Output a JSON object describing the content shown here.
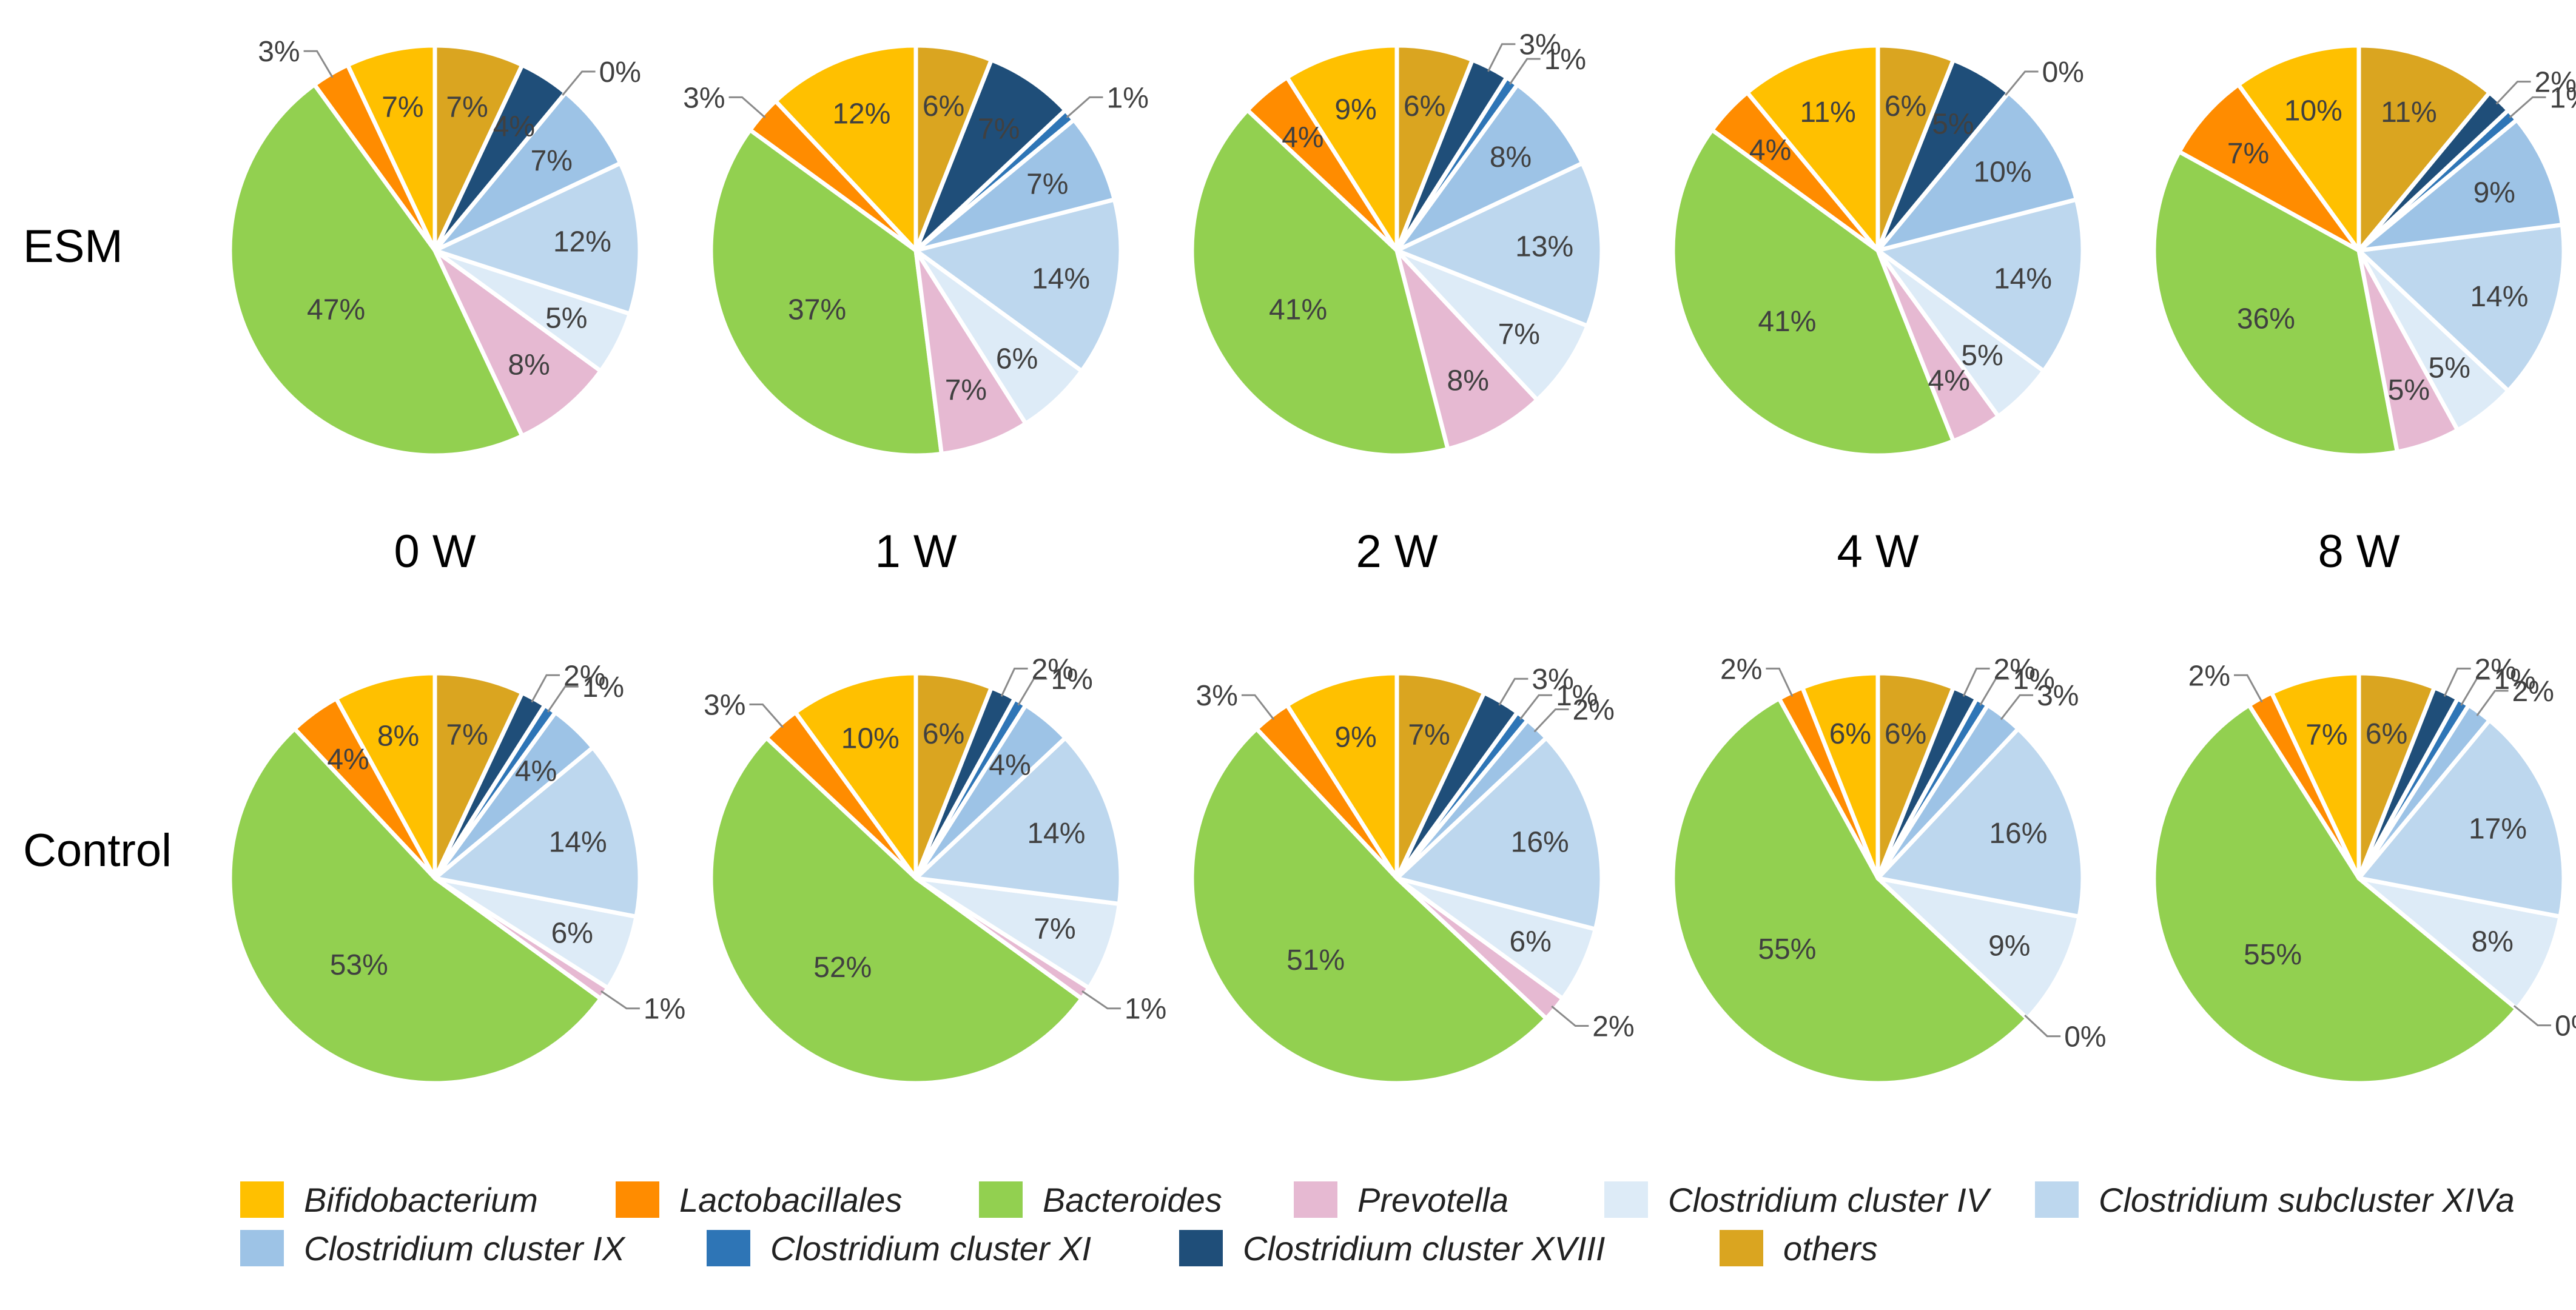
{
  "chart_data": {
    "type": "pie",
    "categories": [
      "Bifidobacterium",
      "Lactobacillales",
      "Bacteroides",
      "Prevotella",
      "Clostridium cluster IV",
      "Clostridium subcluster XIVa",
      "Clostridium cluster IX",
      "Clostridium cluster XI",
      "Clostridium cluster XVIII",
      "others"
    ],
    "colors": [
      "#FFC000",
      "#FF8C00",
      "#92D050",
      "#E6B9D2",
      "#DDEBF7",
      "#BDD7EE",
      "#9DC3E6",
      "#2E75B6",
      "#1F4E79",
      "#DAA520"
    ],
    "row_labels": [
      "ESM",
      "Control"
    ],
    "column_labels": [
      "0 W",
      "1 W",
      "2 W",
      "4 W",
      "8 W"
    ],
    "legend_position": "bottom",
    "charts": [
      {
        "row": "ESM",
        "time": "0 W",
        "values": [
          7,
          3,
          47,
          8,
          5,
          12,
          7,
          0,
          4,
          7
        ]
      },
      {
        "row": "ESM",
        "time": "1 W",
        "values": [
          12,
          3,
          37,
          7,
          6,
          14,
          7,
          1,
          7,
          6
        ]
      },
      {
        "row": "ESM",
        "time": "2 W",
        "values": [
          9,
          4,
          41,
          8,
          7,
          13,
          8,
          1,
          3,
          6
        ]
      },
      {
        "row": "ESM",
        "time": "4 W",
        "values": [
          11,
          4,
          41,
          4,
          5,
          14,
          10,
          0,
          5,
          6
        ]
      },
      {
        "row": "ESM",
        "time": "8 W",
        "values": [
          10,
          7,
          36,
          5,
          5,
          14,
          9,
          1,
          2,
          11
        ]
      },
      {
        "row": "Control",
        "time": "0 W",
        "values": [
          8,
          4,
          53,
          1,
          6,
          14,
          4,
          1,
          2,
          7
        ]
      },
      {
        "row": "Control",
        "time": "1 W",
        "values": [
          10,
          3,
          52,
          1,
          7,
          14,
          4,
          1,
          2,
          6
        ]
      },
      {
        "row": "Control",
        "time": "2 W",
        "values": [
          9,
          3,
          51,
          2,
          6,
          16,
          2,
          1,
          3,
          7
        ]
      },
      {
        "row": "Control",
        "time": "4 W",
        "values": [
          6,
          2,
          55,
          0,
          9,
          16,
          3,
          1,
          2,
          6
        ]
      },
      {
        "row": "Control",
        "time": "8 W",
        "values": [
          7,
          2,
          55,
          0,
          8,
          17,
          2,
          1,
          2,
          6
        ]
      }
    ]
  }
}
